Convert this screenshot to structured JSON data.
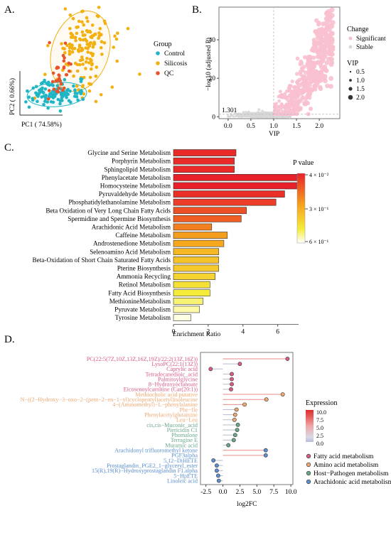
{
  "panels": {
    "a": {
      "letter": "A.",
      "xlabel": "PC1 ( 74.58%)",
      "ylabel": "PC2 ( 0.66%)",
      "legend_title": "Group",
      "groups": [
        {
          "name": "Control",
          "color": "#1fb5c4"
        },
        {
          "name": "Silicosis",
          "color": "#f2b011"
        },
        {
          "name": "QC",
          "color": "#e8542a"
        }
      ]
    },
    "b": {
      "letter": "B.",
      "xlabel": "VIP",
      "ylabel": "−log10 (adjusted P)",
      "threshold_label": "1.301",
      "change_title": "Change",
      "change_items": [
        {
          "name": "Significant",
          "color": "#f8c0cf"
        },
        {
          "name": "Stable",
          "color": "#d7d7d7"
        }
      ],
      "vip_title": "VIP",
      "vip_items": [
        "0.5",
        "1.0",
        "1.5",
        "2.0"
      ]
    },
    "c": {
      "letter": "C.",
      "xlabel": "Enrichment Ratio",
      "legend_title": "P value",
      "legend_ticks": [
        "4 × 10⁻²",
        "3 × 10⁻¹",
        "6 × 10⁻¹"
      ]
    },
    "d": {
      "letter": "D.",
      "xlabel": "log2FC",
      "legend_title": "Expression",
      "legend_ticks": [
        "10.0",
        "7.5",
        "5.0",
        "2.5",
        "0.0"
      ],
      "pathways": [
        {
          "name": "Fatty acid metabolism",
          "color": "#d85a8a"
        },
        {
          "name": "Amino acid metabolism",
          "color": "#f0a872"
        },
        {
          "name": "Host−Pathogen metabolism",
          "color": "#6aa88a"
        },
        {
          "name": "Arachidonic acid metabolism",
          "color": "#5b8fcf"
        }
      ]
    }
  },
  "chart_data": [
    {
      "type": "scatter",
      "panel": "A",
      "title": "",
      "xlabel": "PC1 ( 74.58%)",
      "ylabel": "PC2 ( 0.66%)",
      "series": [
        {
          "name": "Control",
          "approx_n": 110
        },
        {
          "name": "Silicosis",
          "approx_n": 150
        },
        {
          "name": "QC",
          "approx_n": 35
        }
      ],
      "legend": "right",
      "grid": false
    },
    {
      "type": "scatter",
      "panel": "B",
      "title": "",
      "xlabel": "VIP",
      "ylabel": "−log10 (adjusted P)",
      "xlim": [
        -0.2,
        2.45
      ],
      "ylim": [
        -1,
        57
      ],
      "x_ticks": [
        0.0,
        0.5,
        1.0,
        1.5,
        2.0
      ],
      "y_ticks": [
        0,
        20,
        40
      ],
      "thresholds": {
        "vip": 1.0,
        "neg_log10_p": 1.301
      },
      "series": [
        {
          "name": "Significant",
          "approx_n": 800
        },
        {
          "name": "Stable",
          "approx_n": 900
        }
      ],
      "legend": "right",
      "grid": false
    },
    {
      "type": "bar",
      "panel": "C",
      "orientation": "horizontal",
      "title": "",
      "xlabel": "Enrichment Ratio",
      "xlim": [
        0,
        7.2
      ],
      "x_ticks": [
        0,
        2,
        4,
        6
      ],
      "categories": [
        "Glycine and Serine Metabolism",
        "Porphyrin Metabolism",
        "Sphingolipid Metabolism",
        "Phenylacetate Metabolism",
        "Homocysteine Metabolism",
        "Pyruvaldehyde Metabolism",
        "Phosphatidylethanolamine Metabolism",
        "Beta Oxidation of  Very Long Chain Fatty Acids",
        "Spermidine and Spermine Biosynthesis",
        "Arachidonic Acid Metabolism",
        "Caffeine Metabolism",
        "Androstenedione Metabolism",
        "Selenoamino Acid Metabolism",
        "Beta-Oxidation of Short Chain Saturated Fatty Acids",
        "Pterine Biosynthesis",
        "Ammonia Recycling",
        "Retinol Metabolism",
        "Fatty Acid Biosynthesis",
        "MethionineMetabolism",
        "Pyruvate Metabolism",
        "Tyrosine Metabolism"
      ],
      "values": [
        3.6,
        3.5,
        3.5,
        7.1,
        7.1,
        6.4,
        5.9,
        4.2,
        3.9,
        2.2,
        3.1,
        2.9,
        2.6,
        2.6,
        2.6,
        2.4,
        2.1,
        2.1,
        1.7,
        1.5,
        1.0
      ],
      "p_values": [
        0.04,
        0.04,
        0.04,
        0.02,
        0.02,
        0.05,
        0.08,
        0.12,
        0.15,
        0.22,
        0.28,
        0.31,
        0.35,
        0.38,
        0.4,
        0.43,
        0.47,
        0.5,
        0.54,
        0.58,
        0.63
      ],
      "legend_title": "P value"
    },
    {
      "type": "scatter",
      "panel": "D",
      "subtype": "lollipop",
      "title": "",
      "xlabel": "log2FC",
      "xlim": [
        -3.3,
        10.3
      ],
      "x_ticks": [
        -2.5,
        0.0,
        2.5,
        5.0,
        7.5,
        10.0
      ],
      "points": [
        {
          "label": "PC(22:5(7Z,10Z,13Z,16Z,19Z)/22:2(13Z,16Z))",
          "x": 9.5,
          "pathway": "Fatty acid metabolism"
        },
        {
          "label": "LysoPC(22:1(13Z))",
          "x": 2.5,
          "pathway": "Fatty acid metabolism"
        },
        {
          "label": "Caprylic acid",
          "x": -1.8,
          "pathway": "Fatty acid metabolism"
        },
        {
          "label": "Tetradecanedioic_acid",
          "x": 1.3,
          "pathway": "Fatty acid metabolism"
        },
        {
          "label": "Palmitoylglycine",
          "x": 1.3,
          "pathway": "Fatty acid metabolism"
        },
        {
          "label": "8−Hydroxyoctanoate",
          "x": 1.3,
          "pathway": "Fatty acid metabolism"
        },
        {
          "label": "Eicosenoylcarnitine (Car(20:1))",
          "x": 1.2,
          "pathway": "Fatty acid metabolism"
        },
        {
          "label": "Methiocholic acid putative",
          "x": 8.8,
          "pathway": "Amino acid metabolism"
        },
        {
          "label": "N−((2−Hydroxy−3−oxo−2−(pent−2−en−1−yl)cyclopentyl)acetyl)isoleucine",
          "x": 6.4,
          "pathway": "Amino acid metabolism"
        },
        {
          "label": "4−(Aminomethyl)−L−phenylalanine",
          "x": 3.2,
          "pathway": "Amino acid metabolism"
        },
        {
          "label": "Phe−Ile",
          "x": 2.0,
          "pathway": "Amino acid metabolism"
        },
        {
          "label": "Phenylacetylglutamine",
          "x": 1.8,
          "pathway": "Amino acid metabolism"
        },
        {
          "label": "Leu−Leu",
          "x": 1.7,
          "pathway": "Amino acid metabolism"
        },
        {
          "label": "cis,cis−Muconic_acid",
          "x": 2.2,
          "pathway": "Host−Pathogen metabolism"
        },
        {
          "label": "Piericidin C1",
          "x": 2.1,
          "pathway": "Host−Pathogen metabolism"
        },
        {
          "label": "Phomalone",
          "x": 1.8,
          "pathway": "Host−Pathogen metabolism"
        },
        {
          "label": "Terragine E",
          "x": 1.6,
          "pathway": "Host−Pathogen metabolism"
        },
        {
          "label": "Muramic acid",
          "x": 0.8,
          "pathway": "Host−Pathogen metabolism"
        },
        {
          "label": "Arachidonyl trifluoromethyl ketone",
          "x": 6.3,
          "pathway": "Arachidonic acid metabolism"
        },
        {
          "label": "PGF3alpha",
          "x": 6.3,
          "pathway": "Arachidonic acid metabolism"
        },
        {
          "label": "5,12−DiHETE",
          "x": -1.4,
          "pathway": "Arachidonic acid metabolism"
        },
        {
          "label": "Prostaglandin_PGE2_1−glyceryl_ester",
          "x": -0.9,
          "pathway": "Arachidonic acid metabolism"
        },
        {
          "label": "15(R),19(R)−Hydroxyprostaglandin F1.alpha",
          "x": -0.9,
          "pathway": "Arachidonic acid metabolism"
        },
        {
          "label": "5−HpETE",
          "x": -0.7,
          "pathway": "Arachidonic acid metabolism"
        },
        {
          "label": "Linoleic acid",
          "x": -0.6,
          "pathway": "Arachidonic acid metabolism"
        }
      ],
      "legend_title": "Expression"
    }
  ]
}
